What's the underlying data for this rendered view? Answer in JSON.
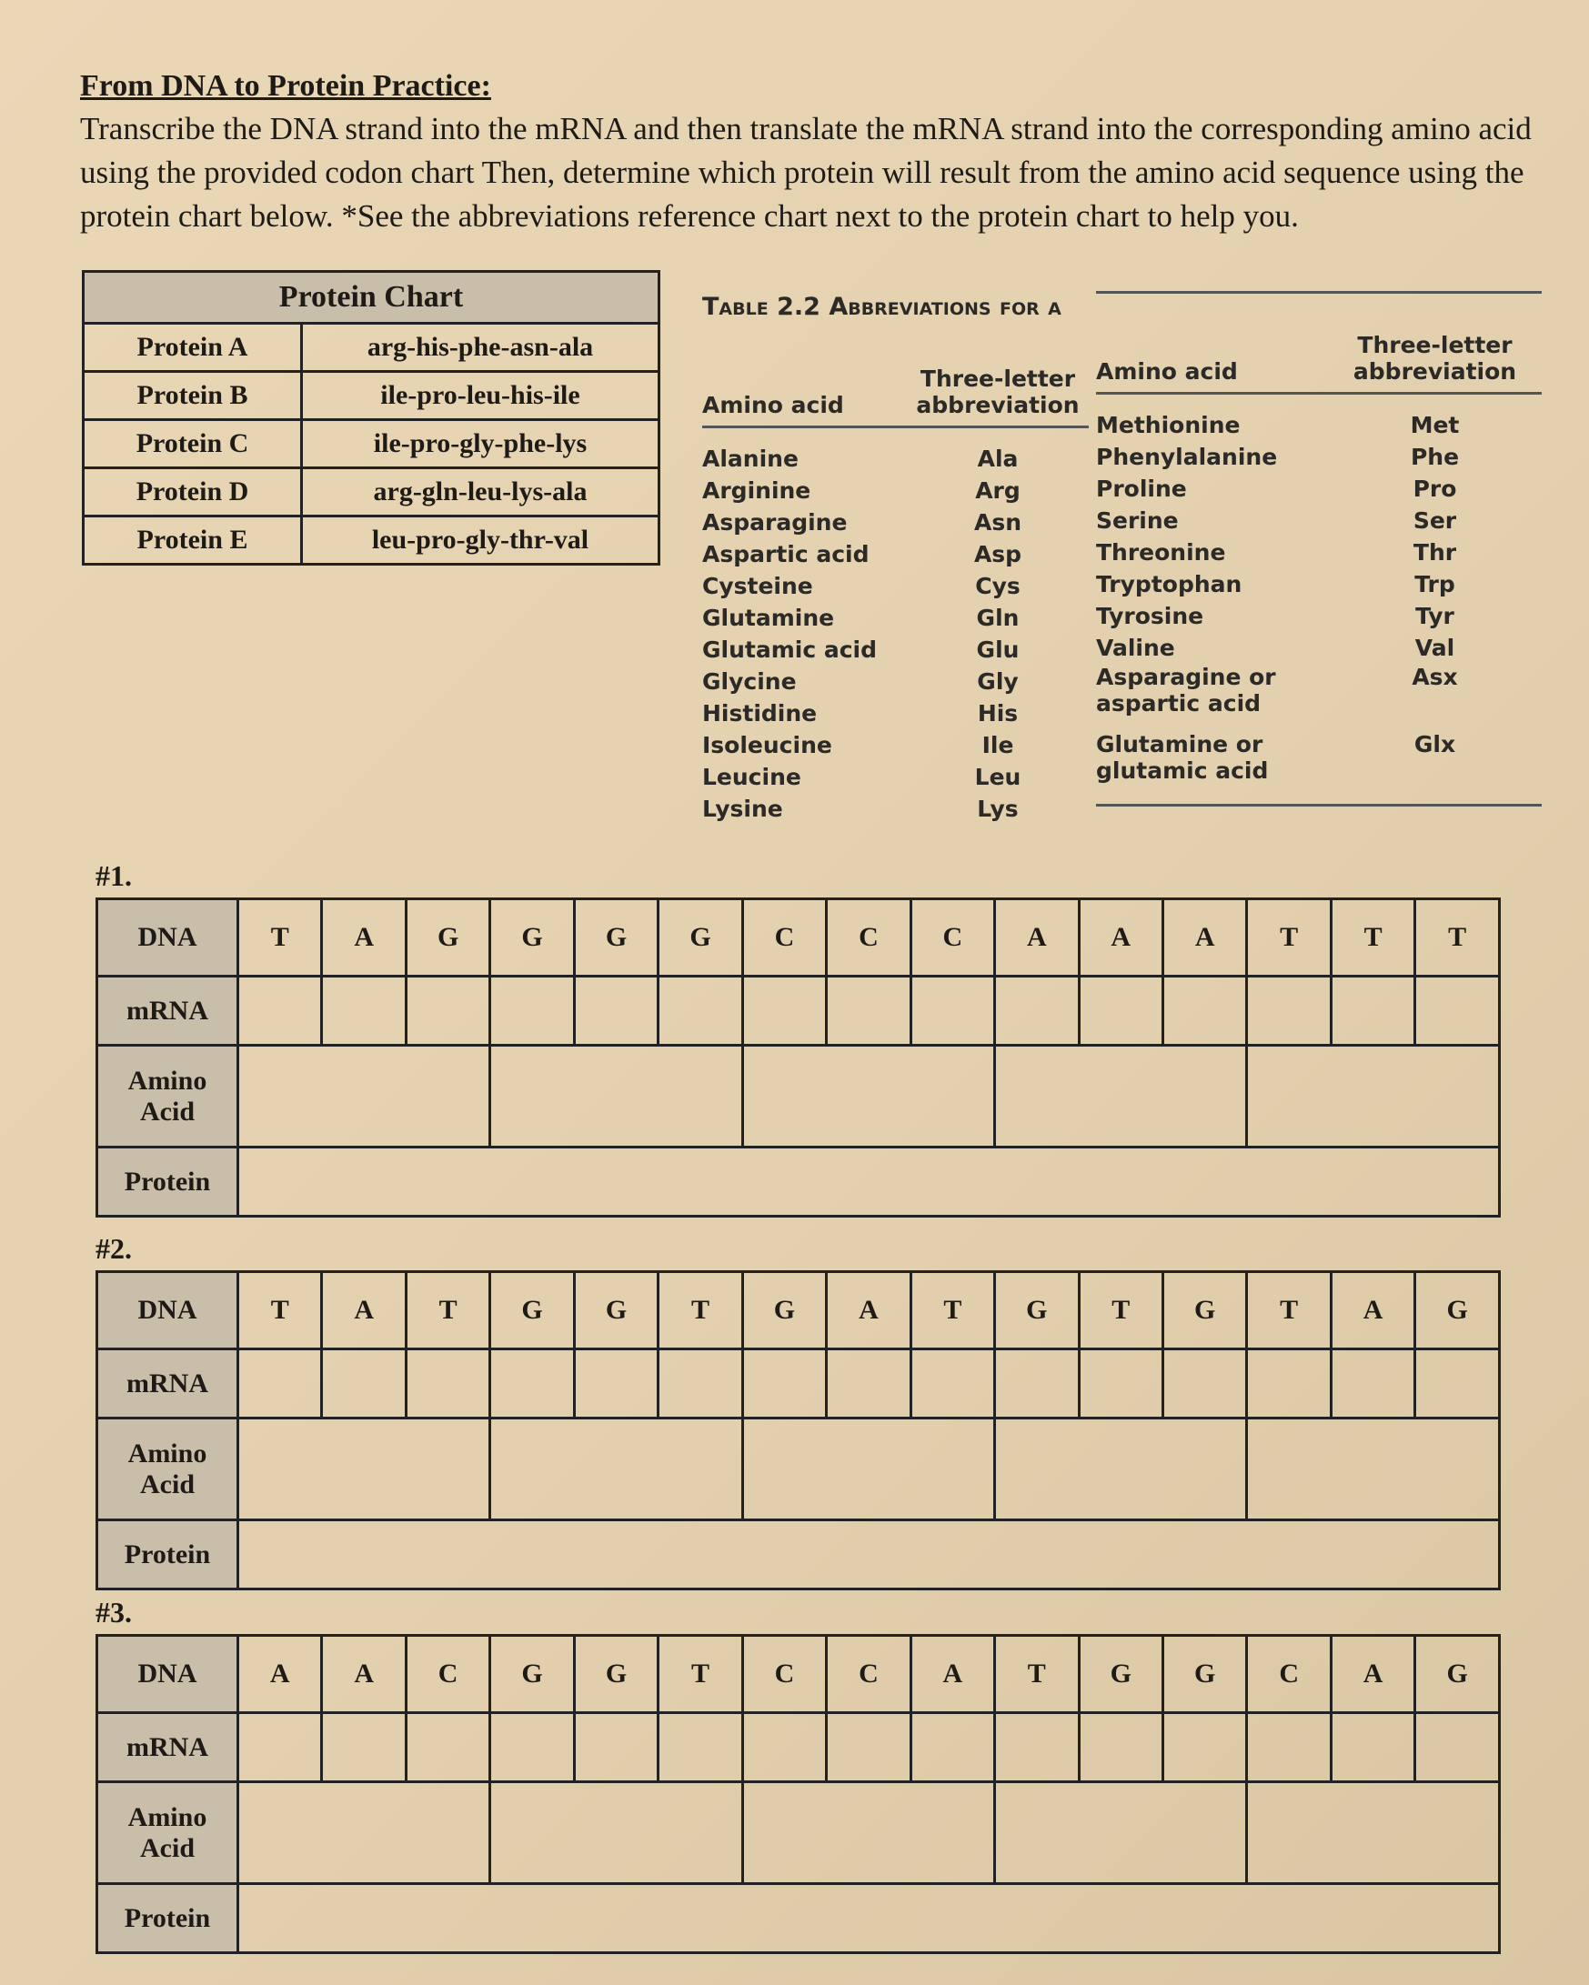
{
  "header": {
    "title": "From DNA to Protein Practice:",
    "instructions": "Transcribe the DNA strand into the mRNA and then translate the mRNA strand into the corresponding amino acid using the provided codon chart Then, determine which protein will result from the amino acid sequence using the protein chart below. *See the abbreviations reference chart next to the protein chart to help you."
  },
  "protein_chart": {
    "title": "Protein Chart",
    "rows": [
      [
        "Protein A",
        "arg-his-phe-asn-ala"
      ],
      [
        "Protein B",
        "ile-pro-leu-his-ile"
      ],
      [
        "Protein C",
        "ile-pro-gly-phe-lys"
      ],
      [
        "Protein D",
        "arg-gln-leu-lys-ala"
      ],
      [
        "Protein E",
        "leu-pro-gly-thr-val"
      ]
    ]
  },
  "abbreviations": {
    "caption": "Table 2.2 Abbreviations for a",
    "columns": [
      "Amino acid",
      "Three-letter abbreviation"
    ],
    "left_rows": [
      [
        "Alanine",
        "Ala"
      ],
      [
        "Arginine",
        "Arg"
      ],
      [
        "Asparagine",
        "Asn"
      ],
      [
        "Aspartic acid",
        "Asp"
      ],
      [
        "Cysteine",
        "Cys"
      ],
      [
        "Glutamine",
        "Gln"
      ],
      [
        "Glutamic acid",
        "Glu"
      ],
      [
        "Glycine",
        "Gly"
      ],
      [
        "Histidine",
        "His"
      ],
      [
        "Isoleucine",
        "Ile"
      ],
      [
        "Leucine",
        "Leu"
      ],
      [
        "Lysine",
        "Lys"
      ]
    ],
    "right_rows": [
      [
        "Methionine",
        "Met"
      ],
      [
        "Phenylalanine",
        "Phe"
      ],
      [
        "Proline",
        "Pro"
      ],
      [
        "Serine",
        "Ser"
      ],
      [
        "Threonine",
        "Thr"
      ],
      [
        "Tryptophan",
        "Trp"
      ],
      [
        "Tyrosine",
        "Tyr"
      ],
      [
        "Valine",
        "Val"
      ],
      [
        "Asparagine or aspartic acid",
        "Asx"
      ],
      [
        "Glutamine or glutamic acid",
        "Glx"
      ]
    ]
  },
  "problems": [
    {
      "label": "#1.",
      "row_labels": [
        "DNA",
        "mRNA",
        "Amino Acid",
        "Protein"
      ],
      "dna": [
        "T",
        "A",
        "G",
        "G",
        "G",
        "G",
        "C",
        "C",
        "C",
        "A",
        "A",
        "A",
        "T",
        "T",
        "T"
      ]
    },
    {
      "label": "#2.",
      "row_labels": [
        "DNA",
        "mRNA",
        "Amino Acid",
        "Protein"
      ],
      "dna": [
        "T",
        "A",
        "T",
        "G",
        "G",
        "T",
        "G",
        "A",
        "T",
        "G",
        "T",
        "G",
        "T",
        "A",
        "G"
      ]
    },
    {
      "label": "#3.",
      "row_labels": [
        "DNA",
        "mRNA",
        "Amino Acid",
        "Protein"
      ],
      "dna": [
        "A",
        "A",
        "C",
        "G",
        "G",
        "T",
        "C",
        "C",
        "A",
        "T",
        "G",
        "G",
        "C",
        "A",
        "G"
      ]
    }
  ]
}
